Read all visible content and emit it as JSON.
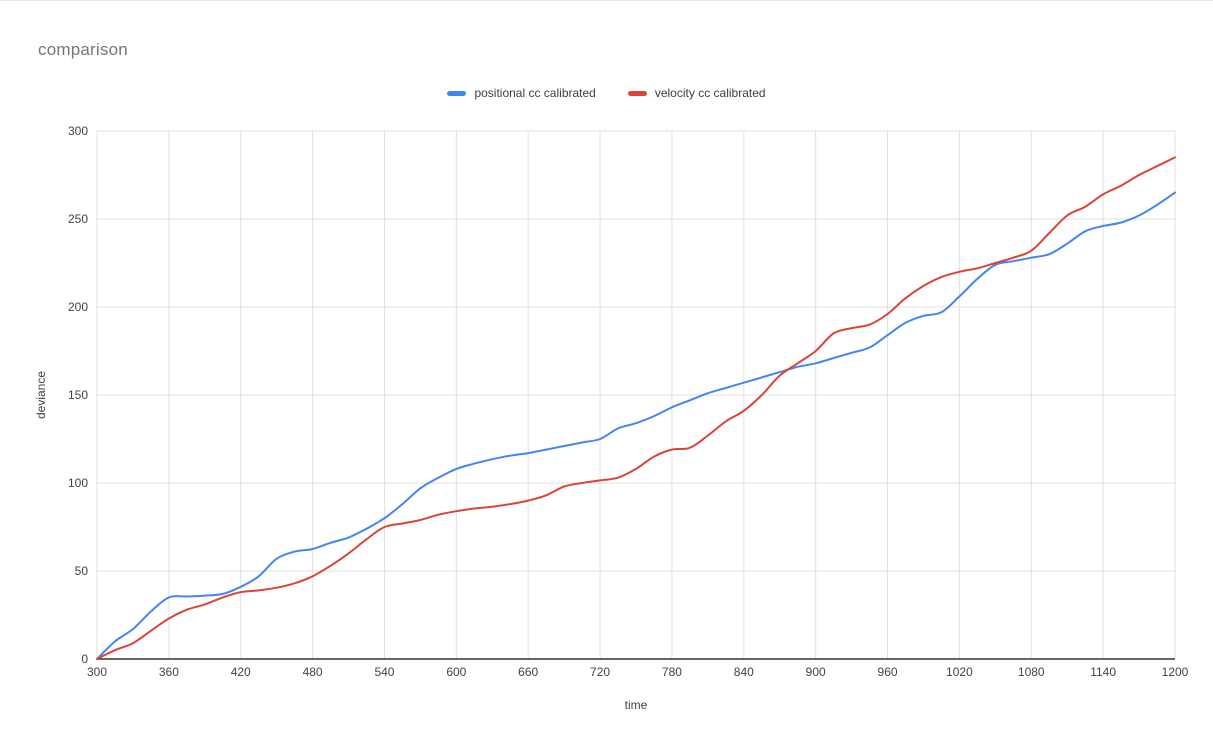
{
  "chart_data": {
    "type": "line",
    "title": "comparison",
    "xlabel": "time",
    "ylabel": "deviance",
    "xlim": [
      300,
      1200
    ],
    "ylim": [
      0,
      300
    ],
    "x_ticks": [
      300,
      360,
      420,
      480,
      540,
      600,
      660,
      720,
      780,
      840,
      900,
      960,
      1020,
      1080,
      1140,
      1200
    ],
    "y_ticks": [
      0,
      50,
      100,
      150,
      200,
      250,
      300
    ],
    "grid": true,
    "legend_position": "top-center",
    "colors": {
      "grid": "#e0e0e0",
      "axis_line": "#333333",
      "tick_label": "#424242",
      "title": "#757575",
      "axis_title": "#424242",
      "legend_label": "#3c4043"
    },
    "x": [
      300,
      315,
      330,
      345,
      360,
      375,
      390,
      405,
      420,
      435,
      450,
      465,
      480,
      495,
      510,
      525,
      540,
      555,
      570,
      585,
      600,
      615,
      630,
      645,
      660,
      675,
      690,
      705,
      720,
      735,
      750,
      765,
      780,
      795,
      810,
      825,
      840,
      855,
      870,
      885,
      900,
      915,
      930,
      945,
      960,
      975,
      990,
      1005,
      1020,
      1035,
      1050,
      1065,
      1080,
      1095,
      1110,
      1125,
      1140,
      1155,
      1170,
      1185,
      1200
    ],
    "series": [
      {
        "name": "positional cc calibrated",
        "color": "#4285f4",
        "values": [
          0,
          10,
          17,
          27,
          35,
          35.5,
          36,
          37,
          41,
          47,
          57,
          61,
          62.5,
          66,
          69,
          74,
          80,
          88,
          97,
          103,
          108,
          111,
          113.5,
          115.5,
          117,
          119,
          121,
          123,
          125,
          131,
          134,
          138,
          143,
          147,
          151,
          154,
          157,
          160,
          163,
          166,
          168,
          171,
          174,
          177,
          184,
          191,
          195,
          197,
          206,
          216,
          224,
          226,
          228,
          230,
          236,
          243,
          246,
          248,
          252,
          258,
          265
        ]
      },
      {
        "name": "velocity cc calibrated",
        "color": "#db4437",
        "values": [
          0,
          5,
          9,
          16,
          23,
          28,
          31,
          35,
          38,
          39,
          40.5,
          43,
          47,
          53,
          60,
          68,
          75,
          77,
          79,
          82,
          84,
          85.5,
          86.5,
          88,
          90,
          93,
          98,
          100,
          101.5,
          103,
          108,
          115,
          119,
          120,
          127,
          135,
          141,
          150,
          161,
          168,
          175,
          185,
          188,
          190,
          196,
          205,
          212,
          217,
          220,
          222,
          225,
          228,
          232,
          242,
          252,
          257,
          264,
          269,
          275,
          280,
          285
        ]
      }
    ]
  }
}
